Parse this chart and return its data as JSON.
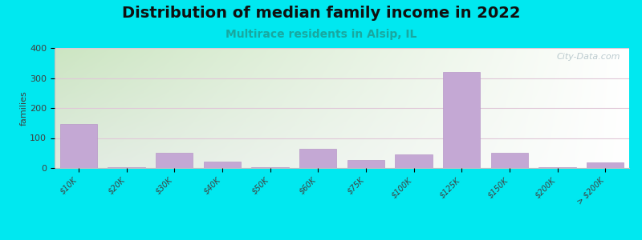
{
  "title": "Distribution of median family income in 2022",
  "subtitle": "Multirace residents in Alsip, IL",
  "ylabel": "families",
  "categories": [
    "$10K",
    "$20K",
    "$30K",
    "$40K",
    "$50K",
    "$60K",
    "$75K",
    "$100K",
    "$125K",
    "$150K",
    "$200K",
    "> $200K"
  ],
  "values": [
    148,
    3,
    52,
    22,
    3,
    65,
    27,
    45,
    320,
    52,
    3,
    20
  ],
  "bar_color": "#c4a8d4",
  "bar_edge_color": "#b898c8",
  "ylim": [
    0,
    400
  ],
  "yticks": [
    0,
    100,
    200,
    300,
    400
  ],
  "background_outer": "#00e8f0",
  "grid_color": "#e0c8d8",
  "title_fontsize": 14,
  "subtitle_fontsize": 10,
  "subtitle_color": "#18a8a0",
  "ylabel_fontsize": 8,
  "watermark": "City-Data.com",
  "positions": [
    0,
    1,
    2,
    3,
    4,
    5,
    6,
    7,
    8,
    9,
    10,
    11
  ],
  "bar_widths": [
    0.8,
    0.8,
    0.8,
    0.8,
    0.8,
    0.8,
    0.8,
    0.8,
    0.8,
    0.8,
    0.8,
    0.8
  ]
}
